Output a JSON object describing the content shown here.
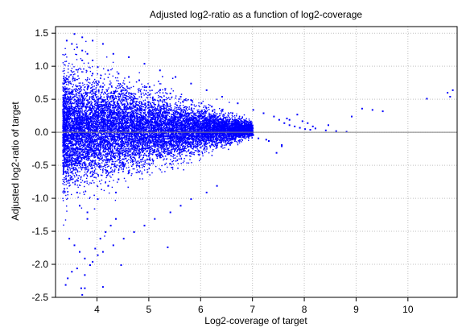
{
  "chart_data": {
    "type": "scatter",
    "title": "Adjusted log2-ratio as a function of log2-coverage",
    "xlabel": "Log2-coverage of target",
    "ylabel": "Adjusted log2-ratio of target",
    "xlim": [
      3.2,
      10.95
    ],
    "ylim": [
      -2.5,
      1.6
    ],
    "xticks": [
      4,
      5,
      6,
      7,
      8,
      9,
      10
    ],
    "yticks": [
      1.5,
      1.0,
      0.5,
      0.0,
      -0.5,
      -1.0,
      -1.5,
      -2.0,
      -2.5
    ],
    "xtick_labels": [
      "4",
      "5",
      "6",
      "7",
      "8",
      "9",
      "10"
    ],
    "ytick_labels": [
      "1.5",
      "1.0",
      "0.5",
      "0.0",
      "-0.5",
      "-1.0",
      "-1.5",
      "-2.0",
      "-2.5"
    ],
    "grid": true,
    "reference_line_y": 0.0,
    "point_color": "#0000ff",
    "reference_line_color": "#808080",
    "grid_color": "#c0c0c0",
    "series": [
      {
        "x": [
          3.35,
          3.4,
          3.45,
          3.5,
          3.55,
          3.6,
          3.7,
          3.8,
          3.9,
          4.0,
          4.1,
          4.2,
          4.3,
          4.4,
          4.5,
          4.6,
          4.7,
          4.8,
          4.9,
          5.0,
          5.1,
          5.2,
          5.3,
          5.4,
          5.5,
          5.6,
          5.7,
          5.8,
          5.9,
          6.0,
          6.1,
          6.2,
          6.3,
          6.4,
          6.5,
          6.6,
          6.7,
          6.8,
          6.9,
          7.0,
          3.4,
          3.5,
          3.6,
          3.7,
          3.8,
          3.9,
          4.0,
          4.2,
          4.4,
          4.6,
          4.8,
          5.0,
          5.2,
          5.4,
          5.6,
          5.8,
          6.0,
          6.2,
          6.4,
          6.6,
          3.45,
          3.55,
          3.65,
          3.75,
          3.85,
          3.95,
          4.05,
          4.15,
          4.25,
          4.35,
          3.38,
          3.42,
          3.5,
          3.6,
          3.68,
          3.75,
          3.85,
          3.9,
          4.0,
          4.1,
          4.3,
          4.5,
          4.7,
          4.9,
          5.1,
          5.4,
          5.6,
          5.8,
          6.1,
          6.3,
          3.55,
          3.7,
          3.9,
          4.1,
          4.3,
          4.6,
          4.9,
          5.2,
          5.5,
          5.8,
          6.1,
          6.4,
          6.7,
          7.0,
          7.2,
          7.4,
          7.5,
          7.6,
          7.7,
          7.8,
          7.9,
          8.0,
          8.1,
          8.2,
          8.4,
          8.6,
          8.8,
          9.1,
          9.3,
          9.5,
          10.35,
          10.75,
          10.8,
          10.85,
          7.1,
          7.3,
          7.55,
          7.65,
          7.85,
          7.95,
          8.05,
          8.15,
          8.45,
          8.9,
          3.7,
          3.75,
          4.1,
          4.45,
          5.35,
          3.5,
          3.65,
          3.8,
          4.35,
          4.6,
          7.55,
          7.7,
          7.45,
          7.25,
          3.6,
          3.95,
          4.25,
          4.55,
          5.05,
          5.25,
          5.45,
          5.65,
          5.85,
          6.05,
          6.25,
          6.45,
          6.55,
          6.75,
          6.85,
          6.95
        ],
        "y": [
          0.2,
          -0.3,
          0.5,
          -0.6,
          0.8,
          -0.9,
          1.1,
          -1.2,
          0.9,
          -1.0,
          0.7,
          -0.8,
          0.6,
          -0.7,
          0.5,
          -0.6,
          0.4,
          -0.5,
          0.3,
          -0.4,
          0.35,
          -0.35,
          0.3,
          -0.3,
          0.25,
          -0.25,
          0.2,
          -0.2,
          0.15,
          -0.15,
          0.12,
          -0.12,
          0.1,
          -0.1,
          0.08,
          -0.08,
          0.06,
          -0.06,
          0.04,
          -0.03,
          1.4,
          1.35,
          1.3,
          1.25,
          1.2,
          1.1,
          1.0,
          0.95,
          0.9,
          0.85,
          0.8,
          0.7,
          0.65,
          0.6,
          0.55,
          0.5,
          0.45,
          0.4,
          0.35,
          0.3,
          -1.6,
          -1.7,
          -1.8,
          -1.9,
          -2.0,
          -1.75,
          -1.6,
          -1.5,
          -1.4,
          -1.3,
          -2.3,
          -2.2,
          -2.1,
          -2.05,
          -2.35,
          -2.15,
          -2.0,
          -1.95,
          -1.85,
          -1.8,
          -1.7,
          -1.6,
          -1.5,
          -1.4,
          -1.3,
          -1.2,
          -1.1,
          -1.0,
          -0.9,
          -0.8,
          1.5,
          1.45,
          1.4,
          1.35,
          1.2,
          1.15,
          1.05,
          0.95,
          0.85,
          0.75,
          0.65,
          0.55,
          0.45,
          0.35,
          0.3,
          0.25,
          0.2,
          0.15,
          0.12,
          0.1,
          0.08,
          0.06,
          0.05,
          0.07,
          0.04,
          0.03,
          0.02,
          0.37,
          0.35,
          0.33,
          0.52,
          0.61,
          0.55,
          0.65,
          -0.08,
          -0.12,
          -0.18,
          0.22,
          0.28,
          0.18,
          0.15,
          0.1,
          0.12,
          0.25,
          -2.45,
          -2.35,
          -2.33,
          -2.0,
          -1.73,
          -0.7,
          -1.1,
          -1.3,
          -0.9,
          -0.6,
          -0.2,
          0.2,
          -0.3,
          -0.1,
          0.0,
          0.0,
          0.0,
          0.0,
          0.0,
          0.0,
          0.0,
          0.0,
          0.0,
          0.0,
          0.0,
          0.0,
          0.0,
          0.0,
          0.0,
          0.0
        ]
      }
    ]
  }
}
